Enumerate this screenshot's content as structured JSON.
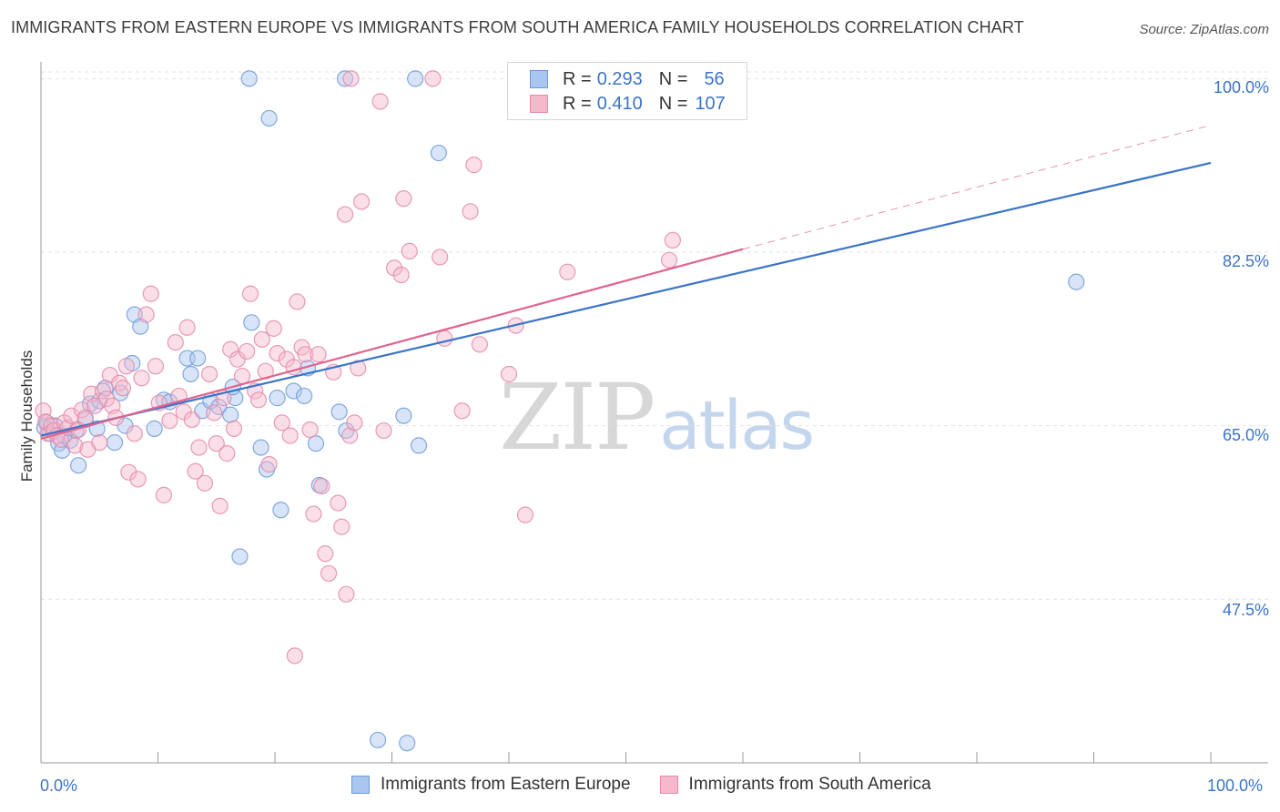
{
  "header": {
    "title": "IMMIGRANTS FROM EASTERN EUROPE VS IMMIGRANTS FROM SOUTH AMERICA FAMILY HOUSEHOLDS CORRELATION CHART",
    "source": "Source: ZipAtlas.com"
  },
  "watermark": {
    "zip": "ZIP",
    "atlas": "atlas"
  },
  "legend": {
    "series1": {
      "r_label": "R =",
      "r_value": "0.293",
      "n_label": "N =",
      "n_value": "56"
    },
    "series2": {
      "r_label": "R =",
      "r_value": "0.410",
      "n_label": "N =",
      "n_value": "107"
    }
  },
  "colors": {
    "blue_fill": "#a9c6f0",
    "blue_stroke": "#6e9ad8",
    "blue_line": "#3a74c8",
    "pink_fill": "#f6b9cb",
    "pink_stroke": "#e48aa8",
    "pink_line": "#e0648e",
    "grid": "#e2e2e2",
    "axis_text": "#3a74c8"
  },
  "chart_data": {
    "type": "scatter",
    "title": "IMMIGRANTS FROM EASTERN EUROPE VS IMMIGRANTS FROM SOUTH AMERICA FAMILY HOUSEHOLDS CORRELATION CHART",
    "xlabel": "",
    "ylabel": "Family Households",
    "xlim": [
      0,
      100
    ],
    "ylim": [
      31,
      101.5
    ],
    "y_ticks": [
      47.5,
      65.0,
      82.5,
      100.0
    ],
    "y_tick_labels": [
      "47.5%",
      "65.0%",
      "82.5%",
      "100.0%"
    ],
    "x_tick_labels": [
      "0.0%",
      "100.0%"
    ],
    "grid": "horizontal dashed",
    "legend_placement": "top-center",
    "series": [
      {
        "name": "Immigrants from Eastern Europe",
        "r": 0.293,
        "n": 56,
        "trend": {
          "x0": 0,
          "y0": 64.0,
          "x1": 100,
          "y1": 91.5
        },
        "points": [
          [
            0.3,
            64.8
          ],
          [
            0.5,
            65.3
          ],
          [
            0.8,
            64.2
          ],
          [
            1.2,
            65.0
          ],
          [
            1.5,
            63.2
          ],
          [
            1.8,
            62.5
          ],
          [
            2.0,
            64.0
          ],
          [
            2.5,
            63.5
          ],
          [
            3.0,
            64.5
          ],
          [
            3.2,
            61.0
          ],
          [
            3.8,
            65.6
          ],
          [
            4.2,
            67.2
          ],
          [
            4.8,
            64.7
          ],
          [
            5.0,
            67.5
          ],
          [
            5.5,
            68.8
          ],
          [
            6.3,
            63.3
          ],
          [
            6.8,
            68.3
          ],
          [
            7.2,
            65.0
          ],
          [
            7.8,
            71.3
          ],
          [
            8.0,
            76.2
          ],
          [
            8.5,
            75.0
          ],
          [
            9.7,
            64.7
          ],
          [
            10.5,
            67.6
          ],
          [
            11.0,
            67.4
          ],
          [
            12.5,
            71.8
          ],
          [
            12.8,
            70.2
          ],
          [
            13.4,
            71.8
          ],
          [
            13.8,
            66.5
          ],
          [
            14.5,
            67.5
          ],
          [
            15.2,
            66.9
          ],
          [
            16.2,
            66.1
          ],
          [
            16.6,
            67.8
          ],
          [
            16.4,
            68.9
          ],
          [
            17.0,
            51.8
          ],
          [
            18.0,
            75.4
          ],
          [
            18.8,
            62.8
          ],
          [
            19.3,
            60.6
          ],
          [
            20.2,
            67.8
          ],
          [
            20.5,
            56.5
          ],
          [
            21.6,
            68.5
          ],
          [
            22.5,
            68.0
          ],
          [
            22.8,
            70.8
          ],
          [
            23.8,
            59.0
          ],
          [
            23.5,
            63.2
          ],
          [
            25.5,
            66.4
          ],
          [
            26.1,
            64.5
          ],
          [
            28.8,
            33.3
          ],
          [
            31.3,
            33.0
          ],
          [
            17.8,
            100.0
          ],
          [
            19.5,
            96.0
          ],
          [
            26.0,
            100.0
          ],
          [
            32.0,
            100.0
          ],
          [
            34.0,
            92.5
          ],
          [
            31.0,
            66.0
          ],
          [
            32.3,
            63.0
          ],
          [
            88.5,
            79.5
          ]
        ]
      },
      {
        "name": "Immigrants from South America",
        "r": 0.41,
        "n": 107,
        "trend": {
          "x0": 0,
          "y0": 63.7,
          "x1": 60,
          "y1": 82.8
        },
        "trend_extension": {
          "x0": 60,
          "y0": 82.8,
          "x1": 100,
          "y1": 95.3
        },
        "points": [
          [
            0.2,
            66.5
          ],
          [
            0.4,
            65.4
          ],
          [
            0.6,
            64.2
          ],
          [
            0.9,
            65.0
          ],
          [
            1.1,
            64.5
          ],
          [
            1.4,
            64.0
          ],
          [
            1.7,
            63.6
          ],
          [
            2.0,
            65.3
          ],
          [
            2.3,
            64.8
          ],
          [
            2.6,
            66.0
          ],
          [
            2.9,
            63.0
          ],
          [
            3.2,
            64.6
          ],
          [
            3.5,
            66.6
          ],
          [
            3.8,
            65.8
          ],
          [
            4.0,
            62.6
          ],
          [
            4.3,
            68.2
          ],
          [
            4.6,
            67.0
          ],
          [
            5.0,
            63.3
          ],
          [
            5.3,
            68.5
          ],
          [
            5.6,
            67.7
          ],
          [
            5.9,
            70.1
          ],
          [
            6.1,
            67.0
          ],
          [
            6.4,
            65.8
          ],
          [
            6.7,
            69.3
          ],
          [
            7.0,
            68.8
          ],
          [
            7.3,
            71.0
          ],
          [
            7.5,
            60.3
          ],
          [
            8.0,
            64.2
          ],
          [
            8.3,
            59.6
          ],
          [
            8.6,
            69.8
          ],
          [
            9.0,
            76.2
          ],
          [
            9.4,
            78.3
          ],
          [
            9.8,
            71.0
          ],
          [
            10.1,
            67.3
          ],
          [
            10.5,
            58.0
          ],
          [
            11.0,
            65.5
          ],
          [
            11.5,
            73.4
          ],
          [
            11.8,
            68.0
          ],
          [
            12.2,
            66.4
          ],
          [
            12.5,
            74.9
          ],
          [
            12.9,
            65.6
          ],
          [
            13.2,
            60.4
          ],
          [
            13.5,
            62.8
          ],
          [
            14.0,
            59.2
          ],
          [
            14.4,
            70.2
          ],
          [
            14.8,
            66.3
          ],
          [
            15.0,
            63.2
          ],
          [
            15.3,
            56.9
          ],
          [
            15.6,
            67.8
          ],
          [
            15.9,
            62.2
          ],
          [
            16.2,
            72.7
          ],
          [
            16.5,
            64.7
          ],
          [
            16.8,
            71.7
          ],
          [
            17.2,
            70.0
          ],
          [
            17.6,
            72.5
          ],
          [
            17.9,
            78.3
          ],
          [
            18.3,
            68.5
          ],
          [
            18.6,
            67.6
          ],
          [
            18.9,
            73.7
          ],
          [
            19.2,
            70.5
          ],
          [
            19.5,
            61.1
          ],
          [
            19.9,
            74.8
          ],
          [
            20.2,
            72.3
          ],
          [
            20.6,
            65.3
          ],
          [
            21.0,
            71.7
          ],
          [
            21.3,
            64.0
          ],
          [
            21.6,
            70.9
          ],
          [
            21.9,
            77.5
          ],
          [
            22.3,
            72.9
          ],
          [
            22.6,
            72.2
          ],
          [
            23.0,
            64.6
          ],
          [
            23.3,
            56.1
          ],
          [
            23.7,
            72.2
          ],
          [
            24.0,
            58.9
          ],
          [
            24.3,
            52.1
          ],
          [
            24.6,
            50.1
          ],
          [
            25.0,
            70.4
          ],
          [
            25.4,
            57.2
          ],
          [
            25.7,
            54.8
          ],
          [
            26.1,
            48.0
          ],
          [
            26.4,
            64.0
          ],
          [
            26.8,
            65.3
          ],
          [
            27.1,
            70.8
          ],
          [
            21.7,
            41.8
          ],
          [
            26.0,
            86.3
          ],
          [
            26.5,
            100.0
          ],
          [
            29.0,
            97.7
          ],
          [
            27.4,
            87.6
          ],
          [
            31.0,
            87.9
          ],
          [
            30.2,
            80.9
          ],
          [
            31.5,
            82.6
          ],
          [
            30.8,
            80.2
          ],
          [
            34.1,
            82.0
          ],
          [
            36.7,
            86.6
          ],
          [
            37.5,
            73.2
          ],
          [
            40.0,
            70.2
          ],
          [
            40.6,
            75.1
          ],
          [
            41.4,
            56.0
          ],
          [
            45.0,
            80.5
          ],
          [
            54.0,
            83.7
          ],
          [
            53.7,
            81.7
          ],
          [
            34.5,
            73.8
          ],
          [
            36.0,
            66.5
          ],
          [
            29.3,
            64.5
          ],
          [
            33.5,
            100.0
          ],
          [
            37.0,
            91.3
          ],
          [
            59.5,
            100.0
          ]
        ]
      }
    ]
  },
  "bottom_legend": {
    "item1": "Immigrants from Eastern Europe",
    "item2": "Immigrants from South America"
  }
}
